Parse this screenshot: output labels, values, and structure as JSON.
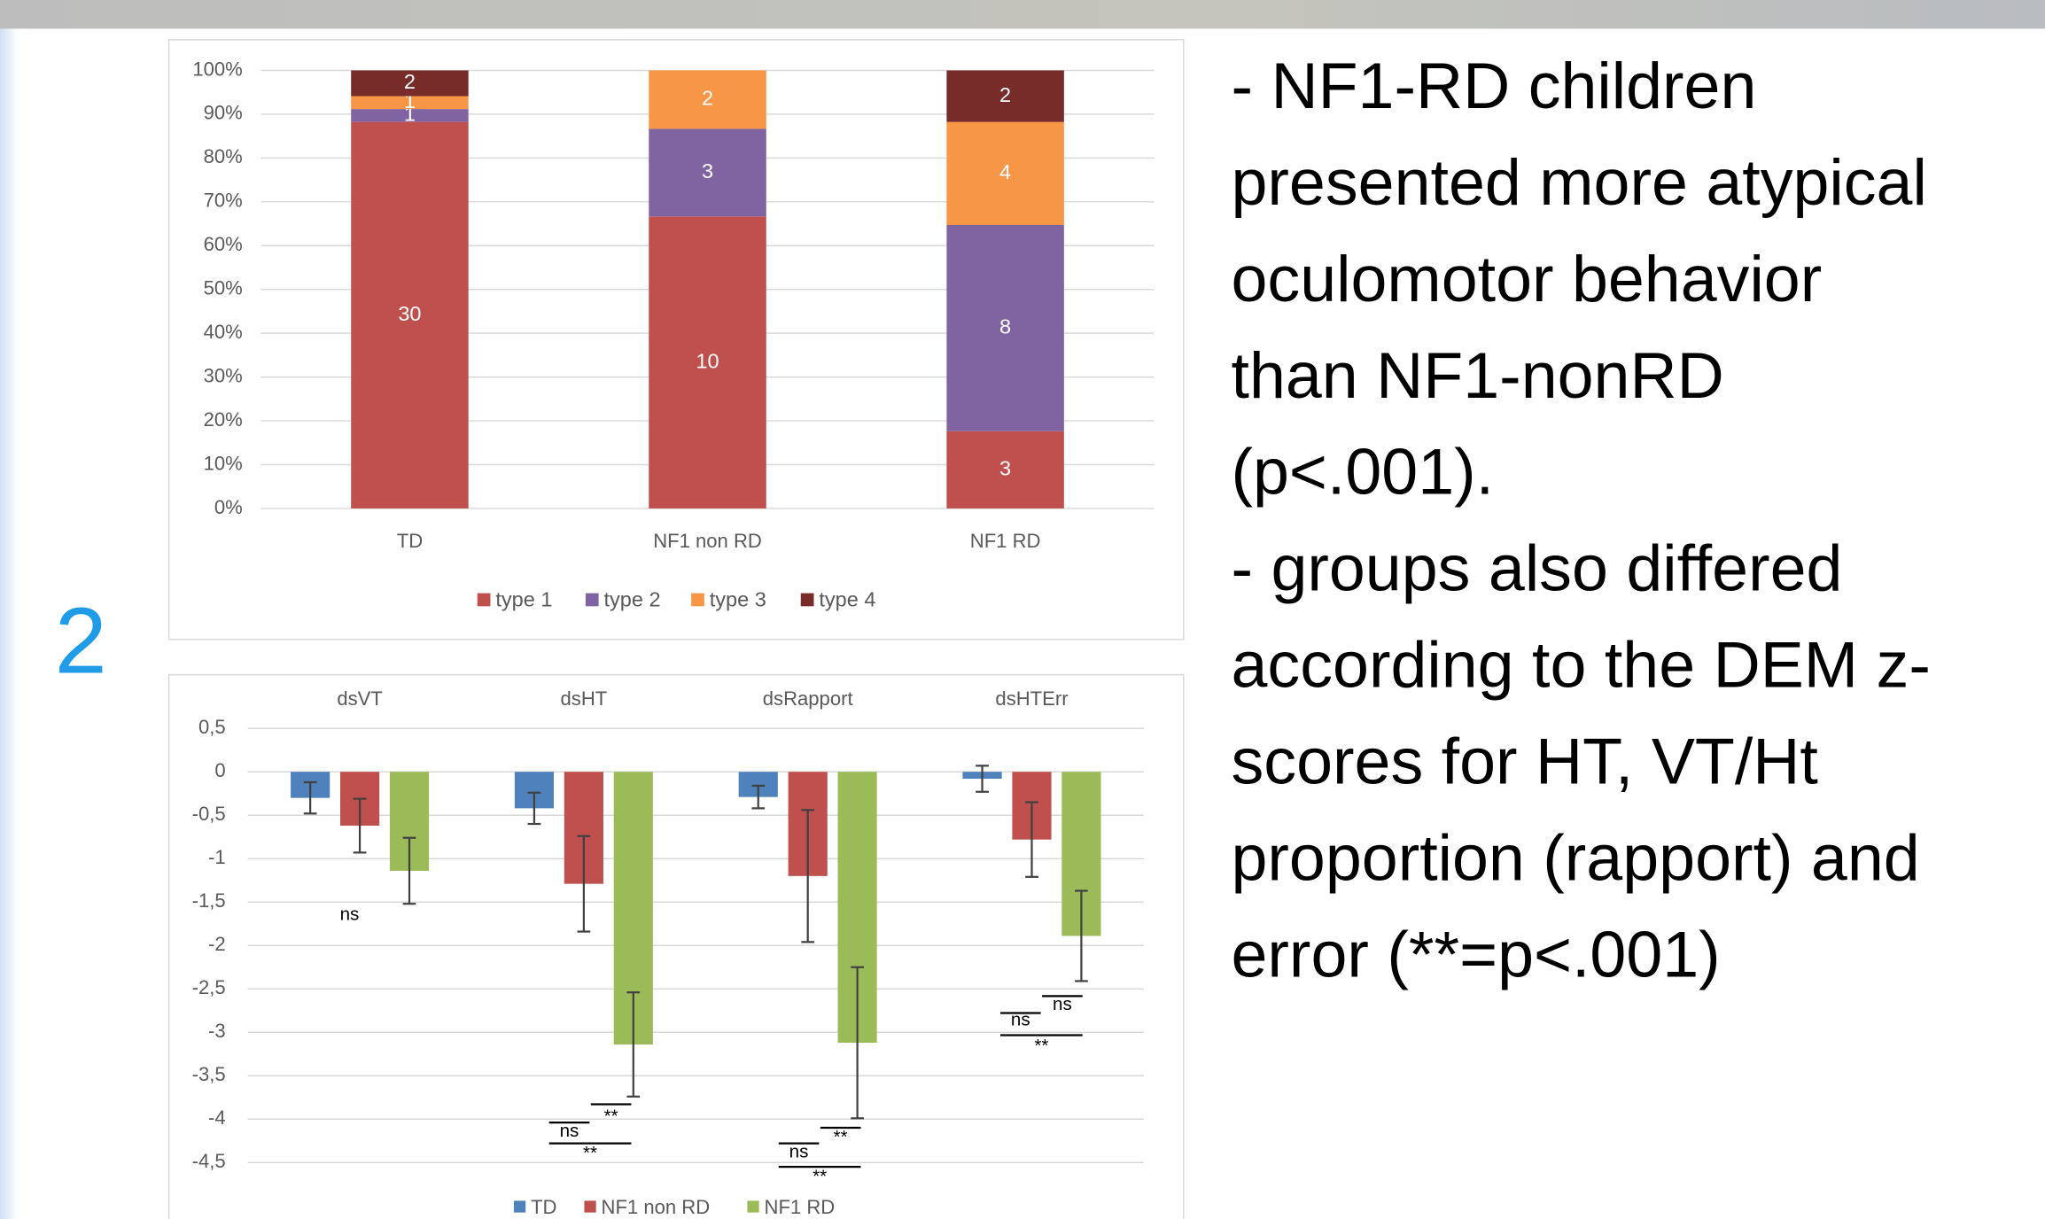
{
  "slide_number": "2",
  "text": [
    "- NF1-RD children",
    "presented more atypical",
    "oculomotor behavior",
    "than NF1-nonRD",
    "(p<.001).",
    "- groups also differed",
    "according to the DEM z-",
    "scores for HT, VT/Ht",
    "proportion (rapport) and",
    "error (**=p<.001)"
  ],
  "chart_data": [
    {
      "type": "bar",
      "stacking": "percent",
      "categories": [
        "TD",
        "NF1 non RD",
        "NF1 RD"
      ],
      "series": [
        {
          "name": "type 1",
          "color": "#c0504d",
          "values": [
            30,
            10,
            3
          ]
        },
        {
          "name": "type 2",
          "color": "#8064a2",
          "values": [
            1,
            3,
            8
          ]
        },
        {
          "name": "type 3",
          "color": "#f79646",
          "values": [
            1,
            2,
            4
          ]
        },
        {
          "name": "type 4",
          "color": "#772c2a",
          "values": [
            2,
            null,
            2
          ]
        }
      ],
      "ylim": [
        0,
        100
      ],
      "yticks": [
        {
          "value": 0,
          "label": "0%"
        },
        {
          "value": 10,
          "label": "10%"
        },
        {
          "value": 20,
          "label": "20%"
        },
        {
          "value": 30,
          "label": "30%"
        },
        {
          "value": 40,
          "label": "40%"
        },
        {
          "value": 50,
          "label": "50%"
        },
        {
          "value": 60,
          "label": "60%"
        },
        {
          "value": 70,
          "label": "70%"
        },
        {
          "value": 80,
          "label": "80%"
        },
        {
          "value": 90,
          "label": "90%"
        },
        {
          "value": 100,
          "label": "100%"
        }
      ],
      "grid": true,
      "legend": "bottom"
    },
    {
      "type": "bar",
      "categories": [
        "dsVT",
        "dsHT",
        "dsRapport",
        "dsHTErr"
      ],
      "series": [
        {
          "name": "TD",
          "color": "#4f81bd",
          "values": [
            -0.3,
            -0.42,
            -0.29,
            -0.08
          ],
          "errors": [
            0.18,
            0.18,
            0.13,
            0.15
          ]
        },
        {
          "name": "NF1 non RD",
          "color": "#c0504d",
          "values": [
            -0.62,
            -1.29,
            -1.2,
            -0.78
          ],
          "errors": [
            0.31,
            0.55,
            0.76,
            0.43
          ]
        },
        {
          "name": "NF1 RD",
          "color": "#9bbb59",
          "values": [
            -1.14,
            -3.14,
            -3.12,
            -1.89
          ],
          "errors": [
            0.38,
            0.6,
            0.87,
            0.52
          ]
        }
      ],
      "annotations": [
        [
          "ns"
        ],
        [
          "ns",
          "**",
          "**"
        ],
        [
          "ns",
          "**",
          "**"
        ],
        [
          "ns",
          "ns",
          "**"
        ]
      ],
      "ylim": [
        -4.5,
        0.5
      ],
      "yticks": [
        {
          "value": 0.5,
          "label": "0,5"
        },
        0,
        {
          "value": -0.5,
          "label": "-0,5"
        },
        -1,
        {
          "value": -1.5,
          "label": "-1,5"
        },
        -2,
        {
          "value": -2.5,
          "label": "-2,5"
        },
        -3,
        {
          "value": -3.5,
          "label": "-3,5"
        },
        -4,
        {
          "value": -4.5,
          "label": "-4,5"
        }
      ],
      "grid": true,
      "legend": "bottom"
    }
  ]
}
